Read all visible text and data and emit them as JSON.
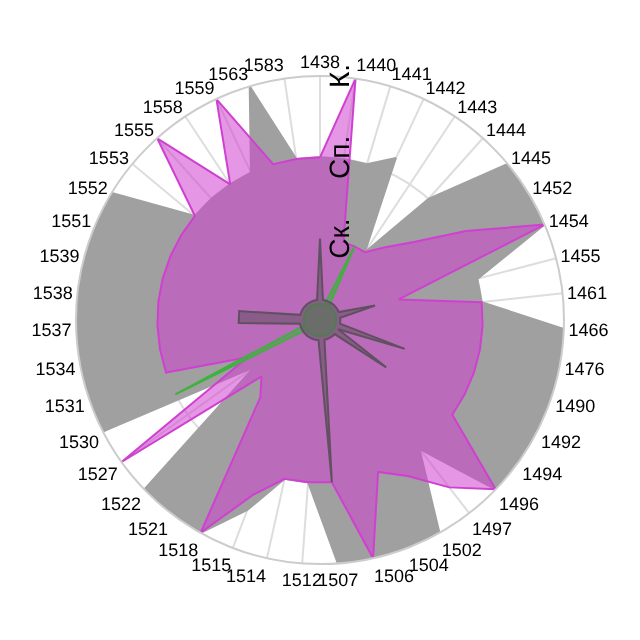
{
  "chart_data": {
    "type": "radar",
    "categories": [
      "1438",
      "1440",
      "1441",
      "1442",
      "1443",
      "1444",
      "1445",
      "1452",
      "1454",
      "1455",
      "1461",
      "1466",
      "1476",
      "1490",
      "1492",
      "1494",
      "1496",
      "1497",
      "1502",
      "1504",
      "1506",
      "1507",
      "1512",
      "1514",
      "1515",
      "1518",
      "1521",
      "1522",
      "1527",
      "1530",
      "1531",
      "1534",
      "1537",
      "1538",
      "1539",
      "1551",
      "1552",
      "1553",
      "1555",
      "1558",
      "1559",
      "1563",
      "1583"
    ],
    "ylim": [
      0,
      3
    ],
    "yticks": [
      {
        "value": 1,
        "label": "Ск."
      },
      {
        "value": 2,
        "label": "Сп."
      },
      {
        "value": 3,
        "label": "К."
      }
    ],
    "grid": true,
    "series": [
      {
        "color": "#a0a0a0",
        "values": [
          2,
          2,
          2,
          2.2,
          1,
          2,
          3,
          3,
          3,
          2,
          2,
          3,
          3,
          3,
          3,
          3,
          3,
          2,
          3,
          3,
          3,
          3,
          2,
          2,
          2.5,
          3,
          3,
          3,
          1,
          3,
          3,
          3,
          3,
          3,
          3,
          3,
          3,
          2,
          2,
          2,
          2,
          3,
          2
        ]
      },
      {
        "color": "#d040d0",
        "values": [
          2,
          3,
          1,
          1,
          1,
          1.2,
          1.5,
          2.1,
          3,
          1,
          2,
          2,
          2,
          2,
          2,
          2,
          3,
          2.6,
          2.2,
          2,
          3,
          2,
          2,
          2,
          2.3,
          3,
          1.2,
          1,
          3,
          1,
          2,
          2,
          2,
          2,
          2,
          2,
          2,
          2,
          3,
          2,
          3,
          2,
          2
        ]
      },
      {
        "color": "#40b040",
        "values": [
          0.2,
          0.2,
          0.2,
          1,
          0.2,
          0.2,
          0.2,
          0.2,
          0.2,
          0.2,
          0.2,
          0.2,
          0.2,
          0.2,
          0.2,
          0.2,
          0.2,
          0.2,
          0.2,
          0.2,
          0.2,
          0.2,
          0.2,
          0.2,
          0.2,
          0.2,
          0.2,
          0.2,
          0.2,
          2,
          0.2,
          0.2,
          0.2,
          0.2,
          0.2,
          0.2,
          0.2,
          0.2,
          0.2,
          0.2,
          0.2,
          0.2,
          0.2
        ]
      },
      {
        "color": "#605060",
        "values": [
          1,
          0.25,
          0.25,
          0.25,
          0.25,
          0.25,
          0.25,
          0.25,
          0.25,
          0.7,
          0.25,
          0.25,
          0.25,
          1.1,
          0.25,
          1,
          0.25,
          0.25,
          0.25,
          0.25,
          0.25,
          2,
          0.25,
          0.25,
          0.25,
          0.25,
          0.25,
          0.25,
          0.25,
          0.25,
          0.25,
          0.25,
          1,
          1,
          0.25,
          0.25,
          0.25,
          0.25,
          0.25,
          0.25,
          0.25,
          0.25,
          0.25
        ]
      }
    ]
  }
}
